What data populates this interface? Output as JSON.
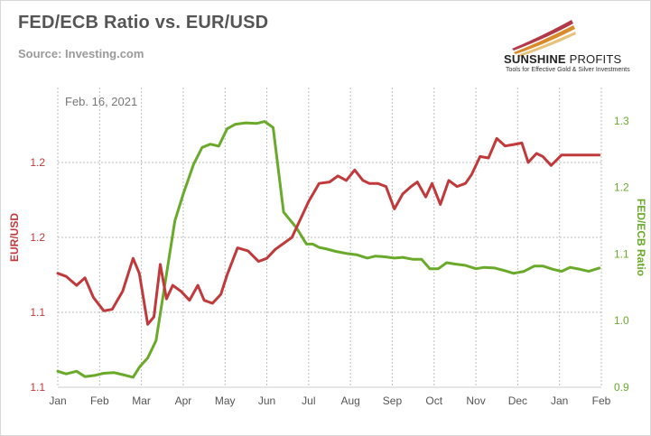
{
  "header": {
    "title": "FED/ECB Ratio vs. EUR/USD",
    "source": "Source: Investing.com"
  },
  "logo": {
    "name_bold": "SUNSHINE",
    "name_thin": "PROFITS",
    "tagline": "Tools for Effective Gold & Silver Investments"
  },
  "colors": {
    "eurusd": "#c0393b",
    "ratio": "#6aaa2a",
    "grid": "#bdbdbd",
    "axis_text": "#555555"
  },
  "chart_data": {
    "type": "line",
    "annotation": "Feb. 16, 2021",
    "x_tick_labels": [
      "Jan",
      "Feb",
      "Mar",
      "Apr",
      "May",
      "Jun",
      "Jul",
      "Aug",
      "Sep",
      "Oct",
      "Nov",
      "Dec",
      "Jan",
      "Feb"
    ],
    "left_axis": {
      "label": "EUR/USD",
      "range": [
        1.05,
        1.25
      ],
      "tick_values": [
        1.05,
        1.1,
        1.15,
        1.2
      ],
      "tick_labels": [
        "1.1",
        "1.1",
        "1.2",
        "1.2"
      ]
    },
    "right_axis": {
      "label": "FED/ECB Ratio",
      "range": [
        0.9,
        1.35
      ],
      "tick_values": [
        0.9,
        1.0,
        1.1,
        1.2,
        1.3
      ],
      "tick_labels": [
        "0.9",
        "1.0",
        "1.1",
        "1.2",
        "1.3"
      ]
    },
    "grid": true,
    "series": [
      {
        "name": "EUR/USD",
        "axis": "left",
        "x": [
          0,
          0.2,
          0.45,
          0.65,
          0.85,
          1.1,
          1.3,
          1.55,
          1.8,
          1.95,
          2.15,
          2.3,
          2.45,
          2.6,
          2.75,
          2.95,
          3.15,
          3.35,
          3.5,
          3.7,
          3.9,
          4.05,
          4.3,
          4.55,
          4.8,
          5.0,
          5.2,
          5.4,
          5.6,
          5.8,
          6.0,
          6.25,
          6.5,
          6.7,
          6.9,
          7.1,
          7.3,
          7.45,
          7.65,
          7.85,
          8.05,
          8.25,
          8.45,
          8.6,
          8.8,
          8.95,
          9.15,
          9.35,
          9.55,
          9.75,
          9.9,
          10.1,
          10.3,
          10.5,
          10.7,
          10.9,
          11.1,
          11.25,
          11.45,
          11.6,
          11.8,
          12.05,
          12.2,
          12.4,
          12.6,
          12.75,
          12.95
        ],
        "values": [
          1.126,
          1.124,
          1.118,
          1.123,
          1.11,
          1.101,
          1.102,
          1.114,
          1.136,
          1.126,
          1.092,
          1.097,
          1.132,
          1.109,
          1.118,
          1.114,
          1.108,
          1.118,
          1.108,
          1.106,
          1.112,
          1.125,
          1.143,
          1.141,
          1.134,
          1.136,
          1.142,
          1.146,
          1.15,
          1.162,
          1.174,
          1.186,
          1.187,
          1.191,
          1.188,
          1.195,
          1.188,
          1.186,
          1.186,
          1.184,
          1.169,
          1.179,
          1.184,
          1.187,
          1.177,
          1.186,
          1.172,
          1.188,
          1.184,
          1.186,
          1.192,
          1.204,
          1.203,
          1.216,
          1.211,
          1.212,
          1.213,
          1.2,
          1.206,
          1.204,
          1.198,
          1.205,
          1.205,
          1.205,
          1.205,
          1.205,
          1.205
        ]
      },
      {
        "name": "FED/ECB Ratio",
        "axis": "right",
        "x": [
          0,
          0.2,
          0.45,
          0.65,
          0.9,
          1.1,
          1.35,
          1.55,
          1.8,
          1.95,
          2.15,
          2.35,
          2.55,
          2.8,
          3.0,
          3.25,
          3.45,
          3.65,
          3.85,
          4.05,
          4.25,
          4.5,
          4.75,
          4.95,
          5.15,
          5.4,
          5.7,
          5.95,
          6.1,
          6.25,
          6.4,
          6.65,
          6.9,
          7.15,
          7.4,
          7.6,
          7.8,
          8.05,
          8.25,
          8.5,
          8.7,
          8.9,
          9.1,
          9.3,
          9.5,
          9.75,
          10.0,
          10.2,
          10.45,
          10.7,
          10.9,
          11.15,
          11.4,
          11.6,
          11.85,
          12.05,
          12.25,
          12.5,
          12.7,
          12.95
        ],
        "values": [
          0.924,
          0.92,
          0.924,
          0.916,
          0.918,
          0.921,
          0.922,
          0.919,
          0.915,
          0.93,
          0.944,
          0.97,
          1.05,
          1.15,
          1.19,
          1.235,
          1.26,
          1.265,
          1.262,
          1.288,
          1.295,
          1.297,
          1.296,
          1.299,
          1.29,
          1.163,
          1.14,
          1.115,
          1.115,
          1.11,
          1.108,
          1.104,
          1.101,
          1.099,
          1.094,
          1.097,
          1.096,
          1.094,
          1.095,
          1.092,
          1.092,
          1.078,
          1.078,
          1.087,
          1.085,
          1.083,
          1.078,
          1.08,
          1.079,
          1.075,
          1.071,
          1.074,
          1.082,
          1.082,
          1.077,
          1.074,
          1.08,
          1.077,
          1.074,
          1.079
        ]
      }
    ]
  }
}
